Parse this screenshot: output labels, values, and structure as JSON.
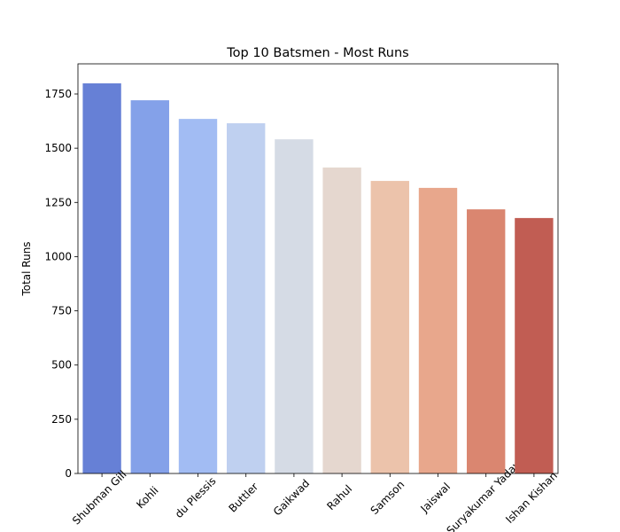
{
  "chart_data": {
    "type": "bar",
    "title": "Top 10 Batsmen - Most Runs",
    "y_label": "Total Runs",
    "categories": [
      "Shubman Gill",
      "Kohli",
      "du Plessis",
      "Buttler",
      "Gaikwad",
      "Rahul",
      "Samson",
      "Jaiswal",
      "Suryakumar Yadav",
      "Ishan Kishan"
    ],
    "values": [
      1799,
      1721,
      1635,
      1615,
      1541,
      1411,
      1349,
      1317,
      1218,
      1178
    ],
    "colors": [
      "#6680d6",
      "#84a1e9",
      "#a2bcf3",
      "#bfd0f0",
      "#d5dbe5",
      "#e5d7cf",
      "#ecc3ab",
      "#e8a78c",
      "#da8670",
      "#c15d53"
    ],
    "ylim": [
      0,
      1889
    ],
    "yticks": [
      0,
      250,
      500,
      750,
      1000,
      1250,
      1500,
      1750
    ]
  }
}
